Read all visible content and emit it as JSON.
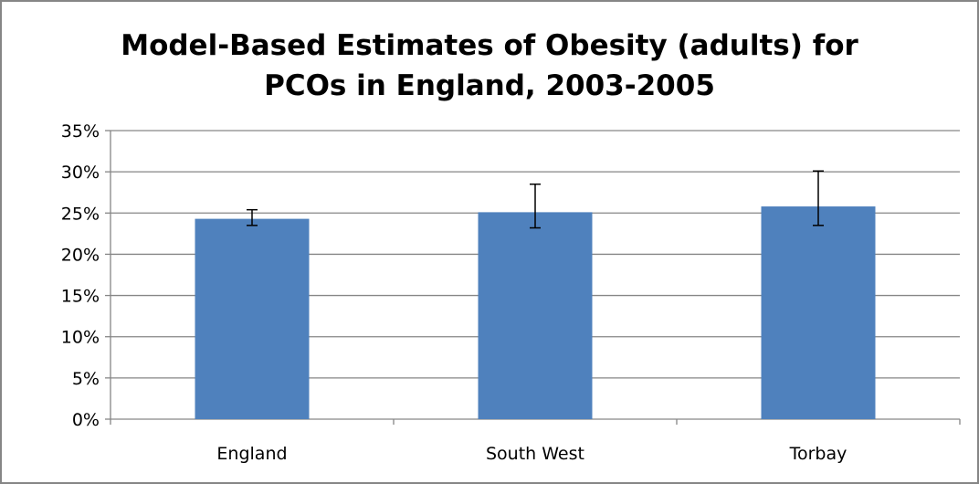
{
  "chart_data": {
    "type": "bar",
    "title": "Model-Based Estimates of Obesity (adults) for\nPCOs in England, 2003-2005",
    "categories": [
      "England",
      "South West",
      "Torbay"
    ],
    "values": [
      24.3,
      25.1,
      25.8
    ],
    "error_low": [
      23.5,
      23.2,
      23.5
    ],
    "error_high": [
      25.4,
      28.5,
      30.1
    ],
    "ylim": [
      0,
      35
    ],
    "yticks": [
      0,
      5,
      10,
      15,
      20,
      25,
      30,
      35
    ],
    "ytick_labels": [
      "0%",
      "5%",
      "10%",
      "15%",
      "20%",
      "25%",
      "30%",
      "35%"
    ],
    "grid": true,
    "legend": "none",
    "colors": {
      "bar": "#4F81BD",
      "grid": "#868686",
      "error_bar": "#000000"
    }
  }
}
